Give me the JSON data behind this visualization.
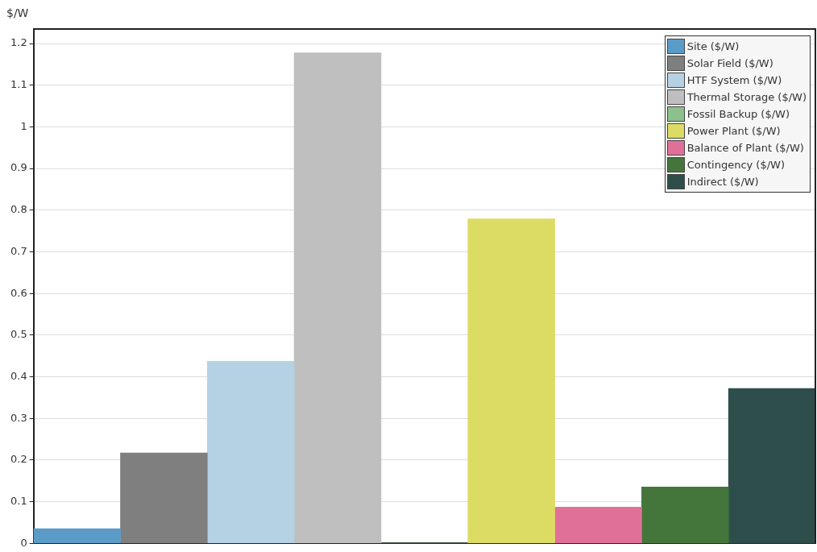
{
  "chart_data": {
    "type": "bar",
    "ylabel": "$/W",
    "categories": [
      null,
      null,
      null,
      null,
      null,
      null,
      null,
      null,
      null
    ],
    "series": [
      {
        "name": "Site ($/W)",
        "color": "#5b9bc8",
        "values": [
          0.035,
          null,
          null,
          null,
          null,
          null,
          null,
          null,
          null
        ]
      },
      {
        "name": "Solar Field ($/W)",
        "color": "#7f7f7f",
        "values": [
          null,
          0.217,
          null,
          null,
          null,
          null,
          null,
          null,
          null
        ]
      },
      {
        "name": "HTF System ($/W)",
        "color": "#b4d2e4",
        "values": [
          null,
          null,
          0.437,
          null,
          null,
          null,
          null,
          null,
          null
        ]
      },
      {
        "name": "Thermal Storage ($/W)",
        "color": "#bfbfbf",
        "values": [
          null,
          null,
          null,
          1.178,
          null,
          null,
          null,
          null,
          null
        ]
      },
      {
        "name": "Fossil Backup ($/W)",
        "color": "#8cc08c",
        "values": [
          null,
          null,
          null,
          null,
          0,
          null,
          null,
          null,
          null
        ]
      },
      {
        "name": "Power Plant ($/W)",
        "color": "#dcdc64",
        "values": [
          null,
          null,
          null,
          null,
          null,
          0.779,
          null,
          null,
          null
        ]
      },
      {
        "name": "Balance of Plant ($/W)",
        "color": "#e07098",
        "values": [
          null,
          null,
          null,
          null,
          null,
          null,
          0.087,
          null,
          null
        ]
      },
      {
        "name": "Contingency ($/W)",
        "color": "#44763c",
        "values": [
          null,
          null,
          null,
          null,
          null,
          null,
          null,
          0.135,
          null
        ]
      },
      {
        "name": "Indirect ($/W)",
        "color": "#2e4e4c",
        "values": [
          null,
          null,
          null,
          null,
          null,
          null,
          null,
          null,
          0.372
        ]
      }
    ],
    "ylim": [
      0,
      1.235
    ],
    "yticks": [
      0,
      0.1,
      0.2,
      0.3,
      0.4,
      0.5,
      0.6,
      0.7,
      0.8,
      0.9,
      1,
      1.1,
      1.2
    ],
    "grid": "y",
    "legend": "top right",
    "tick_labels": "y"
  }
}
